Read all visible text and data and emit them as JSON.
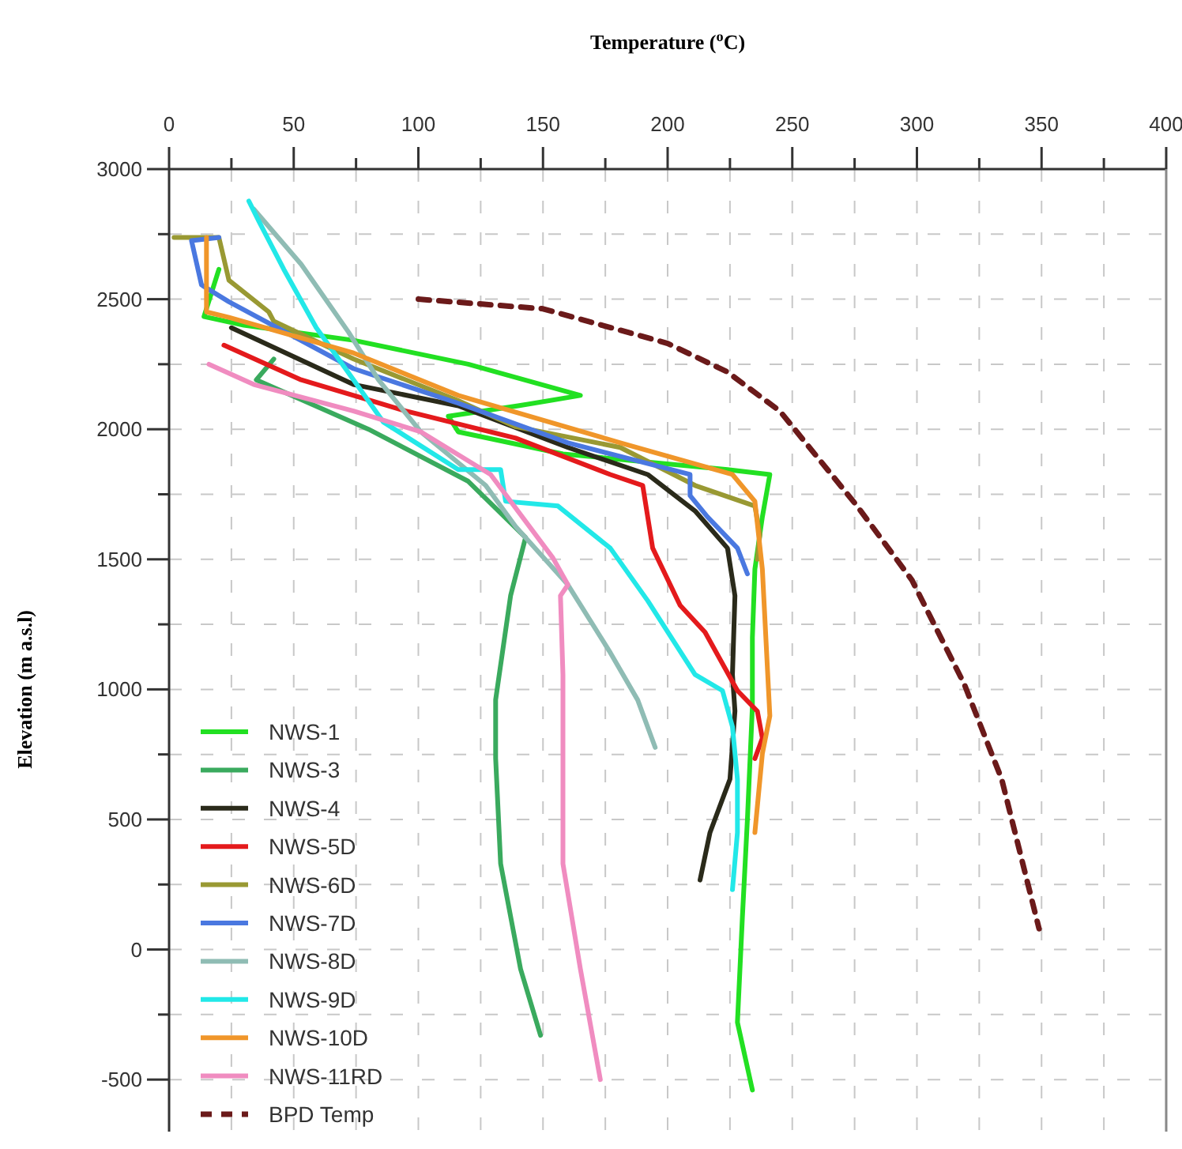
{
  "chart_data": {
    "type": "line",
    "xlabel": "Temperature ($^{o}$C)",
    "ylabel": "Elevation (m a.s.l)",
    "xlim": [
      0,
      400
    ],
    "ylim": [
      -700,
      3000
    ],
    "xticks": [
      0,
      {
        "value": 25,
        "label": null
      },
      50,
      {
        "value": 75,
        "label": null
      },
      100,
      {
        "value": 125,
        "label": null
      },
      150,
      {
        "value": 175,
        "label": null
      },
      200,
      {
        "value": 225,
        "label": null
      },
      250,
      {
        "value": 275,
        "label": null
      },
      300,
      {
        "value": 325,
        "label": null
      },
      350,
      {
        "value": 375,
        "label": null
      },
      400
    ],
    "yticks": [
      -500,
      {
        "value": -250,
        "label": null
      },
      0,
      {
        "value": 250,
        "label": null
      },
      500,
      {
        "value": 750,
        "label": null
      },
      1000,
      {
        "value": 1250,
        "label": null
      },
      1500,
      {
        "value": 1750,
        "label": null
      },
      2000,
      {
        "value": 2250,
        "label": null
      },
      2500,
      {
        "value": 2750,
        "label": null
      },
      3000
    ],
    "grid": true,
    "legend": "bottom left",
    "marker": "none",
    "series": [
      {
        "name": "NWS-1",
        "color": "#22e022",
        "x": [
          20,
          14,
          30,
          74,
          120,
          165,
          140,
          112,
          116,
          158,
          224,
          241,
          238,
          235,
          234,
          234,
          232,
          230,
          228,
          234
        ],
        "values": [
          2615,
          2433,
          2400,
          2342,
          2250,
          2130,
          2090,
          2050,
          1990,
          1905,
          1845,
          1826,
          1663,
          1462,
          1200,
          935,
          500,
          127,
          -280,
          -540
        ]
      },
      {
        "name": "NWS-3",
        "color": "#3aaa5e",
        "x": [
          42,
          35,
          80,
          120,
          143,
          137,
          131,
          131,
          133,
          141,
          149
        ],
        "values": [
          2270,
          2190,
          2000,
          1800,
          1584,
          1360,
          960,
          735,
          330,
          -75,
          -330
        ]
      },
      {
        "name": "NWS-4",
        "color": "#2a2a1a",
        "x": [
          25,
          74,
          116,
          160,
          192,
          211,
          224,
          227,
          226,
          227,
          225,
          217,
          213
        ],
        "values": [
          2390,
          2172,
          2090,
          1930,
          1826,
          1686,
          1543,
          1360,
          1057,
          917,
          655,
          450,
          267
        ]
      },
      {
        "name": "NWS-5D",
        "color": "#e41a1c",
        "x": [
          22,
          53,
          95,
          139,
          177,
          190,
          194,
          205,
          215,
          228,
          236,
          238,
          235
        ],
        "values": [
          2323,
          2190,
          2070,
          1966,
          1826,
          1784,
          1543,
          1323,
          1220,
          995,
          916,
          813,
          734
        ]
      },
      {
        "name": "NWS-6D",
        "color": "#999933",
        "x": [
          2,
          20,
          24,
          40,
          42,
          74,
          116,
          139,
          181,
          211,
          235,
          237,
          236
        ],
        "values": [
          2737,
          2737,
          2573,
          2451,
          2415,
          2270,
          2110,
          2010,
          1930,
          1784,
          1705,
          1596,
          1500
        ]
      },
      {
        "name": "NWS-7D",
        "color": "#4a78e0",
        "x": [
          20,
          9,
          13,
          24,
          74,
          116,
          160,
          209,
          209,
          216,
          228,
          232
        ],
        "values": [
          2737,
          2725,
          2555,
          2490,
          2233,
          2100,
          1948,
          1826,
          1745,
          1663,
          1543,
          1444
        ]
      },
      {
        "name": "NWS-8D",
        "color": "#8fbcb4",
        "x": [
          34,
          53,
          72,
          84,
          101,
          127,
          139,
          160,
          177,
          188,
          195
        ],
        "values": [
          2846,
          2634,
          2373,
          2190,
          1990,
          1784,
          1626,
          1402,
          1141,
          959,
          777
        ]
      },
      {
        "name": "NWS-9D",
        "color": "#22e8e8",
        "x": [
          32,
          36,
          46,
          59,
          74,
          86,
          116,
          133,
          135,
          156,
          177,
          192,
          211,
          222,
          226,
          228,
          228,
          226
        ],
        "values": [
          2877,
          2800,
          2615,
          2391,
          2190,
          2027,
          1845,
          1845,
          1723,
          1705,
          1543,
          1341,
          1057,
          995,
          856,
          655,
          450,
          230
        ]
      },
      {
        "name": "NWS-10D",
        "color": "#f0962a",
        "x": [
          15,
          15,
          24,
          74,
          116,
          181,
          226,
          235,
          238,
          241,
          238,
          235
        ],
        "values": [
          2737,
          2451,
          2430,
          2293,
          2130,
          1948,
          1826,
          1723,
          1462,
          898,
          753,
          450
        ]
      },
      {
        "name": "NWS-11RD",
        "color": "#f08cc0",
        "x": [
          16,
          34,
          74,
          101,
          129,
          154,
          160,
          157,
          158,
          158,
          165,
          173
        ],
        "values": [
          2250,
          2172,
          2070,
          1990,
          1826,
          1505,
          1402,
          1360,
          1057,
          330,
          -75,
          -500
        ]
      },
      {
        "name": "BPD Temp",
        "color": "#6b1a1a",
        "line_style": "dashed",
        "x": [
          100,
          150,
          200,
          224,
          245,
          276,
          298,
          319,
          334,
          349
        ],
        "values": [
          2500,
          2463,
          2330,
          2220,
          2070,
          1705,
          1420,
          1020,
          655,
          80
        ]
      }
    ]
  }
}
